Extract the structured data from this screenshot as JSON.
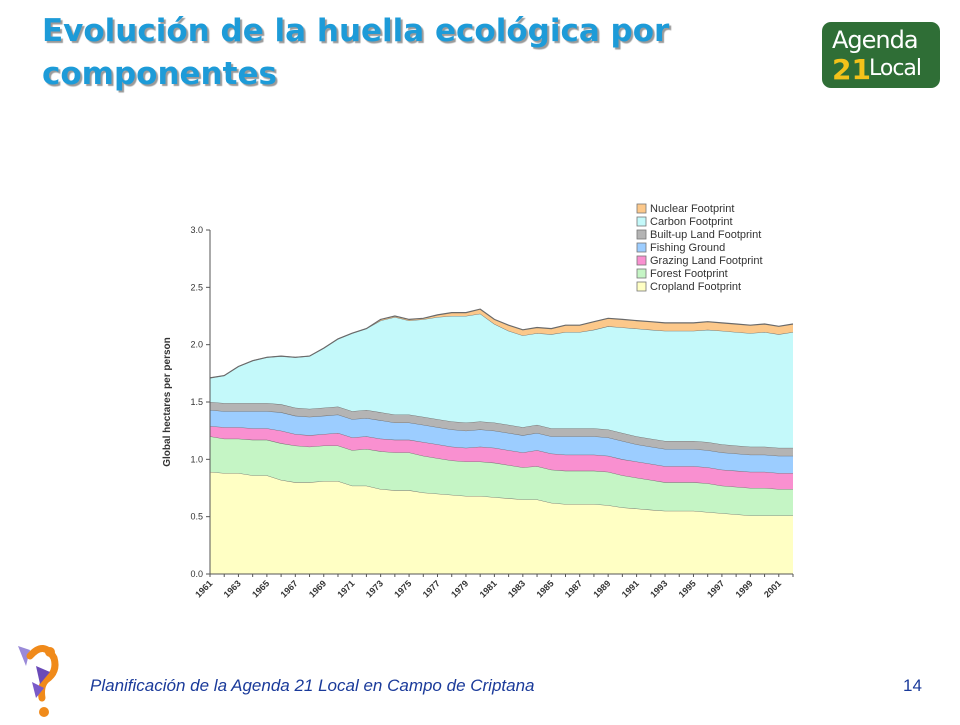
{
  "slide": {
    "title": "Evolución de la huella ecológica por componentes",
    "footer": "Planificación de la Agenda 21 Local en Campo de Criptana",
    "page_number": "14"
  },
  "logo": {
    "line1": "Agenda",
    "number": "21",
    "line2": "Local",
    "colors": {
      "background": "#2f6e36",
      "number": "#f3c21a",
      "text": "#ffffff"
    }
  },
  "colors": {
    "title": "#1d9bd8",
    "footer": "#1a3a9a"
  },
  "chart_data": {
    "type": "area",
    "stacked": true,
    "title": "",
    "xlabel": "",
    "ylabel": "Global hectares per person",
    "ylim": [
      0,
      3.0
    ],
    "yticks": [
      "0.0",
      "0.5",
      "1.0",
      "1.5",
      "2.0",
      "2.5",
      "3.0"
    ],
    "xticks": [
      "1961",
      "1963",
      "1965",
      "1967",
      "1969",
      "1971",
      "1973",
      "1975",
      "1977",
      "1979",
      "1981",
      "1983",
      "1985",
      "1987",
      "1989",
      "1991",
      "1993",
      "1995",
      "1997",
      "1999",
      "2001"
    ],
    "x": [
      1961,
      1962,
      1963,
      1964,
      1965,
      1966,
      1967,
      1968,
      1969,
      1970,
      1971,
      1972,
      1973,
      1974,
      1975,
      1976,
      1977,
      1978,
      1979,
      1980,
      1981,
      1982,
      1983,
      1984,
      1985,
      1986,
      1987,
      1988,
      1989,
      1990,
      1991,
      1992,
      1993,
      1994,
      1995,
      1996,
      1997,
      1998,
      1999,
      2000,
      2001,
      2002
    ],
    "grid": false,
    "legend_position": "top-right",
    "series": [
      {
        "name": "Cropland Footprint",
        "color": "#ffffc4",
        "values": [
          0.89,
          0.88,
          0.88,
          0.86,
          0.86,
          0.82,
          0.8,
          0.8,
          0.81,
          0.81,
          0.77,
          0.77,
          0.74,
          0.73,
          0.73,
          0.71,
          0.7,
          0.69,
          0.68,
          0.68,
          0.67,
          0.66,
          0.65,
          0.65,
          0.62,
          0.61,
          0.61,
          0.61,
          0.6,
          0.58,
          0.57,
          0.56,
          0.55,
          0.55,
          0.55,
          0.54,
          0.53,
          0.52,
          0.51,
          0.51,
          0.51,
          0.51
        ]
      },
      {
        "name": "Forest Footprint",
        "color": "#c5f5c5",
        "values": [
          0.31,
          0.3,
          0.3,
          0.31,
          0.31,
          0.32,
          0.32,
          0.31,
          0.31,
          0.31,
          0.31,
          0.32,
          0.33,
          0.33,
          0.33,
          0.32,
          0.31,
          0.3,
          0.3,
          0.3,
          0.3,
          0.29,
          0.28,
          0.29,
          0.29,
          0.29,
          0.29,
          0.29,
          0.29,
          0.28,
          0.27,
          0.26,
          0.25,
          0.25,
          0.25,
          0.25,
          0.24,
          0.24,
          0.24,
          0.24,
          0.23,
          0.23
        ]
      },
      {
        "name": "Grazing Land Footprint",
        "color": "#f990d0",
        "values": [
          0.09,
          0.1,
          0.1,
          0.1,
          0.1,
          0.11,
          0.1,
          0.1,
          0.1,
          0.11,
          0.11,
          0.11,
          0.11,
          0.11,
          0.11,
          0.12,
          0.12,
          0.12,
          0.12,
          0.13,
          0.13,
          0.13,
          0.13,
          0.14,
          0.14,
          0.14,
          0.14,
          0.14,
          0.14,
          0.14,
          0.14,
          0.14,
          0.14,
          0.14,
          0.14,
          0.14,
          0.14,
          0.14,
          0.14,
          0.14,
          0.14,
          0.14
        ]
      },
      {
        "name": "Fishing Ground",
        "color": "#9ccdff",
        "values": [
          0.14,
          0.14,
          0.14,
          0.15,
          0.15,
          0.16,
          0.16,
          0.16,
          0.16,
          0.16,
          0.16,
          0.16,
          0.16,
          0.15,
          0.15,
          0.15,
          0.15,
          0.15,
          0.15,
          0.15,
          0.15,
          0.15,
          0.15,
          0.15,
          0.15,
          0.16,
          0.16,
          0.16,
          0.16,
          0.16,
          0.15,
          0.15,
          0.15,
          0.15,
          0.15,
          0.15,
          0.15,
          0.15,
          0.15,
          0.15,
          0.15,
          0.15
        ]
      },
      {
        "name": "Built-up Land Footprint",
        "color": "#b4b4b4",
        "values": [
          0.07,
          0.07,
          0.07,
          0.07,
          0.07,
          0.07,
          0.07,
          0.07,
          0.07,
          0.07,
          0.07,
          0.07,
          0.07,
          0.07,
          0.07,
          0.07,
          0.07,
          0.07,
          0.07,
          0.07,
          0.07,
          0.07,
          0.07,
          0.07,
          0.07,
          0.07,
          0.07,
          0.07,
          0.07,
          0.07,
          0.07,
          0.07,
          0.07,
          0.07,
          0.07,
          0.07,
          0.07,
          0.07,
          0.07,
          0.07,
          0.07,
          0.07
        ]
      },
      {
        "name": "Carbon Footprint",
        "color": "#c4f9fa",
        "values": [
          0.21,
          0.24,
          0.32,
          0.37,
          0.4,
          0.42,
          0.44,
          0.46,
          0.52,
          0.59,
          0.68,
          0.71,
          0.8,
          0.85,
          0.82,
          0.85,
          0.89,
          0.92,
          0.93,
          0.94,
          0.86,
          0.82,
          0.8,
          0.8,
          0.82,
          0.84,
          0.84,
          0.86,
          0.9,
          0.92,
          0.94,
          0.95,
          0.96,
          0.96,
          0.96,
          0.98,
          0.99,
          0.99,
          0.99,
          1.0,
          0.99,
          1.01
        ]
      },
      {
        "name": "Nuclear Footprint",
        "color": "#fcc88a",
        "values": [
          0.0,
          0.0,
          0.0,
          0.0,
          0.0,
          0.0,
          0.0,
          0.0,
          0.0,
          0.0,
          0.0,
          0.0,
          0.01,
          0.01,
          0.01,
          0.01,
          0.02,
          0.03,
          0.03,
          0.04,
          0.04,
          0.05,
          0.05,
          0.05,
          0.05,
          0.06,
          0.06,
          0.07,
          0.07,
          0.07,
          0.07,
          0.07,
          0.07,
          0.07,
          0.07,
          0.07,
          0.07,
          0.07,
          0.07,
          0.07,
          0.07,
          0.07
        ]
      }
    ]
  }
}
